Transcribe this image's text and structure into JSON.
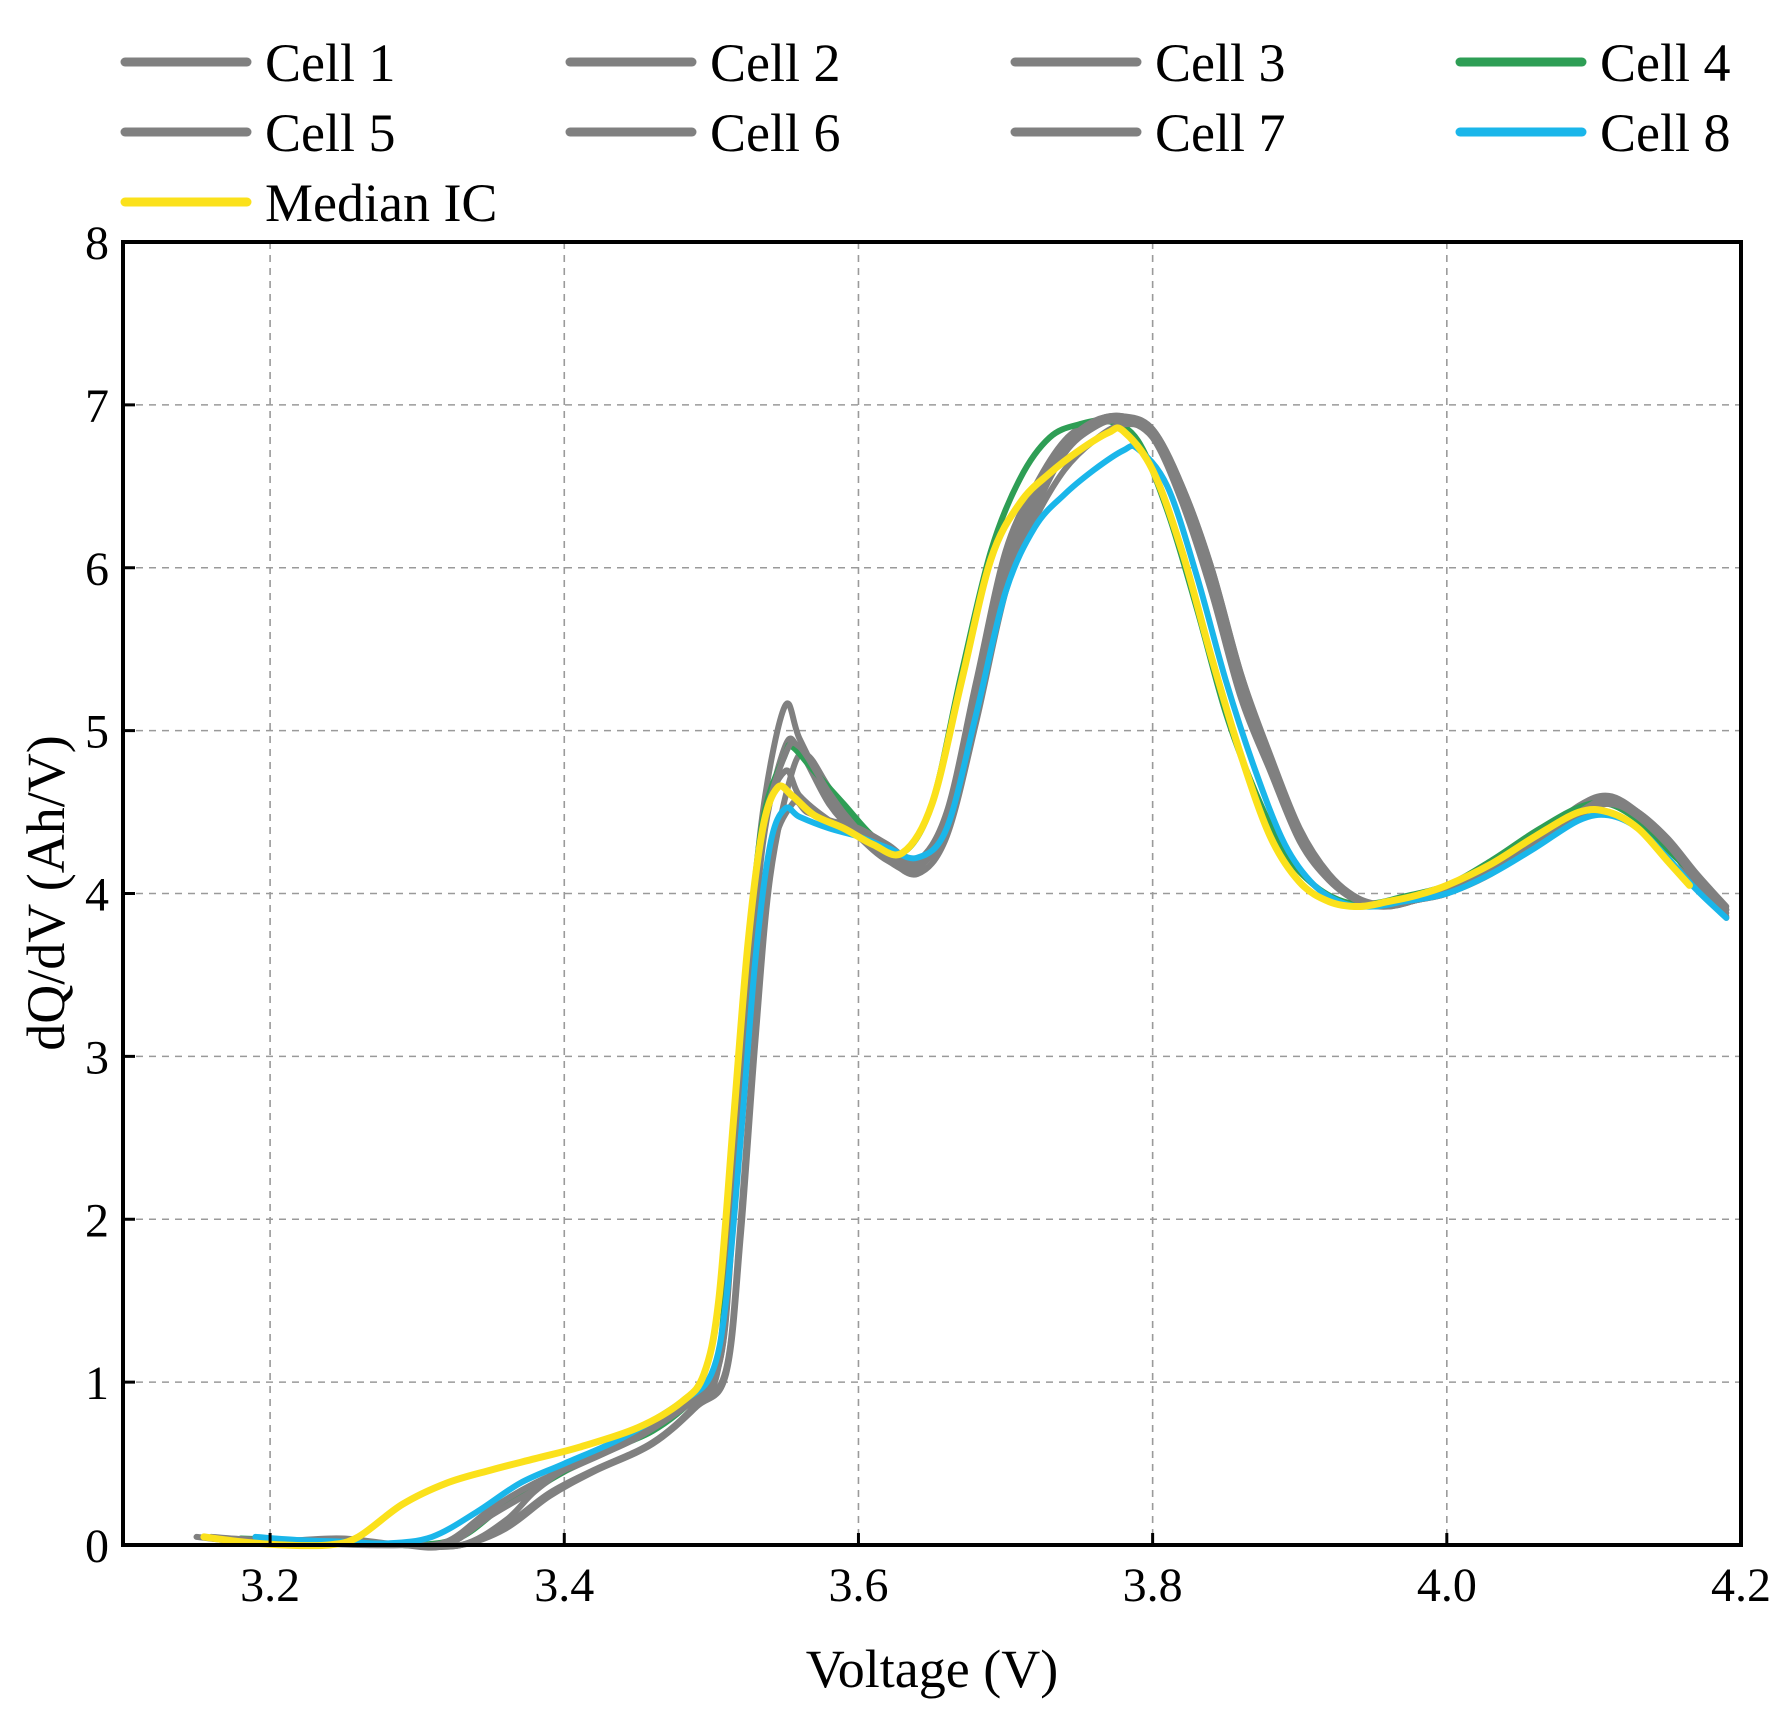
{
  "chart_data": {
    "type": "line",
    "title": "",
    "xlabel": "Voltage (V)",
    "ylabel": "dQ/dV (Ah/V)",
    "xlim": [
      3.1,
      4.2
    ],
    "ylim": [
      0,
      8
    ],
    "xticks": [
      3.2,
      3.4,
      3.6,
      3.8,
      4.0,
      4.2
    ],
    "xtick_labels": [
      "3.2",
      "3.4",
      "3.6",
      "3.8",
      "4.0",
      "4.2"
    ],
    "yticks": [
      0,
      1,
      2,
      3,
      4,
      5,
      6,
      7,
      8
    ],
    "ytick_labels": [
      "0",
      "1",
      "2",
      "3",
      "4",
      "5",
      "6",
      "7",
      "8"
    ],
    "grid": true,
    "legend_position": "top",
    "series": [
      {
        "name": "Cell 1",
        "color": "#808080",
        "x": [
          3.15,
          3.18,
          3.21,
          3.25,
          3.29,
          3.33,
          3.36,
          3.38,
          3.4,
          3.44,
          3.48,
          3.505,
          3.515,
          3.525,
          3.535,
          3.55,
          3.56,
          3.58,
          3.6,
          3.62,
          3.64,
          3.66,
          3.68,
          3.7,
          3.72,
          3.74,
          3.76,
          3.78,
          3.8,
          3.82,
          3.84,
          3.86,
          3.88,
          3.9,
          3.92,
          3.94,
          3.96,
          3.98,
          4.0,
          4.03,
          4.06,
          4.09,
          4.11,
          4.13,
          4.15,
          4.17,
          4.19
        ],
        "y": [
          0.05,
          0.02,
          0.01,
          0.02,
          0.0,
          0.0,
          0.15,
          0.33,
          0.45,
          0.62,
          0.85,
          1.1,
          2.0,
          3.2,
          4.3,
          4.9,
          4.88,
          4.55,
          4.35,
          4.2,
          4.15,
          4.45,
          5.2,
          6.0,
          6.45,
          6.75,
          6.88,
          6.92,
          6.8,
          6.4,
          5.85,
          5.2,
          4.75,
          4.32,
          4.08,
          3.95,
          3.93,
          3.97,
          4.02,
          4.15,
          4.32,
          4.52,
          4.57,
          4.48,
          4.3,
          4.05,
          3.88
        ]
      },
      {
        "name": "Cell 2",
        "color": "#808080",
        "x": [
          3.16,
          3.19,
          3.22,
          3.25,
          3.29,
          3.32,
          3.35,
          3.38,
          3.4,
          3.44,
          3.48,
          3.505,
          3.515,
          3.525,
          3.535,
          3.55,
          3.56,
          3.58,
          3.6,
          3.62,
          3.64,
          3.66,
          3.68,
          3.7,
          3.72,
          3.74,
          3.76,
          3.78,
          3.8,
          3.82,
          3.84,
          3.86,
          3.88,
          3.9,
          3.92,
          3.94,
          3.96,
          3.98,
          4.0,
          4.03,
          4.06,
          4.09,
          4.11,
          4.13,
          4.15,
          4.17,
          4.19
        ],
        "y": [
          0.04,
          0.02,
          0.03,
          0.04,
          0.0,
          0.0,
          0.2,
          0.36,
          0.48,
          0.65,
          0.88,
          1.15,
          2.2,
          3.5,
          4.5,
          5.15,
          4.95,
          4.6,
          4.38,
          4.25,
          4.2,
          4.5,
          5.3,
          6.1,
          6.5,
          6.78,
          6.9,
          6.93,
          6.82,
          6.45,
          5.9,
          5.25,
          4.78,
          4.35,
          4.1,
          3.96,
          3.93,
          3.97,
          4.02,
          4.15,
          4.33,
          4.54,
          4.6,
          4.5,
          4.32,
          4.1,
          3.9
        ]
      },
      {
        "name": "Cell 3",
        "color": "#808080",
        "x": [
          3.17,
          3.2,
          3.23,
          3.27,
          3.3,
          3.33,
          3.36,
          3.39,
          3.42,
          3.46,
          3.49,
          3.51,
          3.52,
          3.53,
          3.54,
          3.555,
          3.565,
          3.58,
          3.6,
          3.62,
          3.64,
          3.66,
          3.68,
          3.7,
          3.72,
          3.74,
          3.76,
          3.78,
          3.8,
          3.82,
          3.84,
          3.86,
          3.88,
          3.9,
          3.92,
          3.94,
          3.96,
          3.98,
          4.0,
          4.03,
          4.06,
          4.09,
          4.11,
          4.13,
          4.15,
          4.17,
          4.19
        ],
        "y": [
          0.03,
          0.01,
          0.02,
          0.0,
          0.0,
          0.0,
          0.1,
          0.3,
          0.45,
          0.62,
          0.85,
          1.05,
          1.9,
          3.1,
          4.1,
          4.75,
          4.85,
          4.65,
          4.4,
          4.22,
          4.12,
          4.35,
          5.05,
          5.85,
          6.35,
          6.7,
          6.86,
          6.92,
          6.85,
          6.5,
          6.0,
          5.35,
          4.82,
          4.38,
          4.1,
          3.95,
          3.92,
          3.96,
          4.0,
          4.12,
          4.3,
          4.5,
          4.58,
          4.5,
          4.34,
          4.12,
          3.92
        ]
      },
      {
        "name": "Cell 4",
        "color": "#2e9e55",
        "x": [
          3.18,
          3.21,
          3.24,
          3.27,
          3.3,
          3.33,
          3.36,
          3.39,
          3.42,
          3.46,
          3.49,
          3.505,
          3.515,
          3.525,
          3.535,
          3.55,
          3.555,
          3.57,
          3.59,
          3.61,
          3.63,
          3.65,
          3.67,
          3.69,
          3.71,
          3.73,
          3.75,
          3.77,
          3.79,
          3.81,
          3.83,
          3.85,
          3.87,
          3.89,
          3.91,
          3.93,
          3.95,
          3.97,
          4.0,
          4.03,
          4.06,
          4.09,
          4.11,
          4.13,
          4.15,
          4.17
        ],
        "y": [
          0.04,
          0.03,
          0.02,
          0.01,
          0.0,
          0.05,
          0.25,
          0.4,
          0.55,
          0.7,
          0.92,
          1.15,
          2.3,
          3.6,
          4.45,
          4.85,
          4.9,
          4.75,
          4.55,
          4.35,
          4.25,
          4.55,
          5.35,
          6.1,
          6.55,
          6.8,
          6.88,
          6.9,
          6.78,
          6.35,
          5.75,
          5.1,
          4.62,
          4.25,
          4.05,
          3.95,
          3.94,
          3.98,
          4.05,
          4.2,
          4.38,
          4.53,
          4.55,
          4.45,
          4.27,
          4.1
        ]
      },
      {
        "name": "Cell 5",
        "color": "#808080",
        "x": [
          3.16,
          3.19,
          3.22,
          3.25,
          3.29,
          3.32,
          3.35,
          3.38,
          3.4,
          3.44,
          3.48,
          3.505,
          3.515,
          3.525,
          3.535,
          3.55,
          3.56,
          3.58,
          3.6,
          3.62,
          3.64,
          3.66,
          3.68,
          3.7,
          3.72,
          3.74,
          3.76,
          3.78,
          3.8,
          3.82,
          3.84,
          3.86,
          3.88,
          3.9,
          3.92,
          3.94,
          3.96,
          3.98,
          4.0,
          4.03,
          4.06,
          4.09,
          4.11,
          4.13,
          4.15,
          4.17,
          4.19
        ],
        "y": [
          0.05,
          0.03,
          0.02,
          0.01,
          0.0,
          0.0,
          0.18,
          0.34,
          0.46,
          0.63,
          0.86,
          1.1,
          2.05,
          3.3,
          4.35,
          4.85,
          4.9,
          4.62,
          4.38,
          4.22,
          4.16,
          4.42,
          5.15,
          5.95,
          6.42,
          6.73,
          6.87,
          6.9,
          6.8,
          6.45,
          5.92,
          5.28,
          4.8,
          4.36,
          4.1,
          3.96,
          3.93,
          3.96,
          4.01,
          4.13,
          4.3,
          4.5,
          4.56,
          4.47,
          4.3,
          4.08,
          3.86
        ]
      },
      {
        "name": "Cell 6",
        "color": "#808080",
        "x": [
          3.17,
          3.2,
          3.23,
          3.26,
          3.29,
          3.32,
          3.35,
          3.38,
          3.41,
          3.45,
          3.49,
          3.51,
          3.52,
          3.53,
          3.54,
          3.555,
          3.565,
          3.58,
          3.6,
          3.62,
          3.64,
          3.66,
          3.68,
          3.7,
          3.72,
          3.74,
          3.76,
          3.78,
          3.8,
          3.82,
          3.84,
          3.86,
          3.88,
          3.9,
          3.92,
          3.94,
          3.96,
          3.98,
          4.0,
          4.03,
          4.06,
          4.09,
          4.11,
          4.13,
          4.15,
          4.17,
          4.19
        ],
        "y": [
          0.04,
          0.02,
          0.01,
          0.0,
          0.0,
          0.02,
          0.22,
          0.38,
          0.5,
          0.66,
          0.9,
          1.08,
          2.0,
          3.2,
          4.2,
          4.55,
          4.5,
          4.45,
          4.4,
          4.3,
          4.2,
          4.45,
          5.1,
          5.9,
          6.3,
          6.6,
          6.78,
          6.88,
          6.82,
          6.5,
          6.0,
          5.35,
          4.85,
          4.4,
          4.12,
          3.97,
          3.93,
          3.96,
          4.01,
          4.13,
          4.3,
          4.48,
          4.55,
          4.48,
          4.32,
          4.1,
          3.9
        ]
      },
      {
        "name": "Cell 7",
        "color": "#808080",
        "x": [
          3.17,
          3.2,
          3.23,
          3.26,
          3.3,
          3.33,
          3.36,
          3.39,
          3.42,
          3.46,
          3.49,
          3.505,
          3.515,
          3.525,
          3.535,
          3.55,
          3.56,
          3.58,
          3.6,
          3.62,
          3.64,
          3.66,
          3.68,
          3.7,
          3.72,
          3.74,
          3.76,
          3.78,
          3.8,
          3.82,
          3.84,
          3.86,
          3.88,
          3.9,
          3.92,
          3.94,
          3.96,
          3.98,
          4.0,
          4.03,
          4.06,
          4.09,
          4.11,
          4.13,
          4.15,
          4.17,
          4.19
        ],
        "y": [
          0.04,
          0.03,
          0.02,
          0.01,
          0.0,
          0.0,
          0.12,
          0.32,
          0.46,
          0.63,
          0.87,
          1.1,
          2.1,
          3.4,
          4.4,
          4.75,
          4.6,
          4.45,
          4.35,
          4.25,
          4.18,
          4.45,
          5.2,
          6.0,
          6.45,
          6.75,
          6.9,
          6.93,
          6.85,
          6.5,
          5.95,
          5.3,
          4.8,
          4.37,
          4.1,
          3.95,
          3.92,
          3.96,
          4.0,
          4.12,
          4.3,
          4.5,
          4.58,
          4.5,
          4.33,
          4.1,
          3.85
        ]
      },
      {
        "name": "Cell 8",
        "color": "#1ab6ea",
        "x": [
          3.19,
          3.22,
          3.25,
          3.28,
          3.31,
          3.34,
          3.37,
          3.4,
          3.44,
          3.48,
          3.5,
          3.51,
          3.52,
          3.53,
          3.54,
          3.55,
          3.56,
          3.58,
          3.6,
          3.62,
          3.64,
          3.66,
          3.68,
          3.7,
          3.72,
          3.74,
          3.76,
          3.78,
          3.79,
          3.81,
          3.83,
          3.85,
          3.87,
          3.89,
          3.91,
          3.93,
          3.95,
          3.97,
          4.0,
          4.03,
          4.06,
          4.09,
          4.11,
          4.13,
          4.15,
          4.17,
          4.19
        ],
        "y": [
          0.05,
          0.03,
          0.02,
          0.01,
          0.05,
          0.2,
          0.38,
          0.5,
          0.66,
          0.88,
          1.05,
          1.5,
          2.5,
          3.6,
          4.3,
          4.52,
          4.47,
          4.4,
          4.35,
          4.28,
          4.22,
          4.4,
          5.1,
          5.85,
          6.25,
          6.45,
          6.6,
          6.72,
          6.73,
          6.5,
          5.95,
          5.3,
          4.75,
          4.3,
          4.05,
          3.94,
          3.92,
          3.95,
          4.0,
          4.12,
          4.28,
          4.45,
          4.48,
          4.4,
          4.22,
          4.02,
          3.85
        ]
      },
      {
        "name": "Median IC",
        "color": "#fbe11b",
        "x": [
          3.155,
          3.18,
          3.21,
          3.24,
          3.26,
          3.29,
          3.32,
          3.35,
          3.38,
          3.41,
          3.45,
          3.48,
          3.495,
          3.505,
          3.515,
          3.525,
          3.535,
          3.545,
          3.555,
          3.57,
          3.59,
          3.61,
          3.63,
          3.65,
          3.67,
          3.69,
          3.71,
          3.73,
          3.75,
          3.77,
          3.78,
          3.8,
          3.82,
          3.84,
          3.86,
          3.88,
          3.9,
          3.92,
          3.94,
          3.96,
          3.98,
          4.0,
          4.03,
          4.06,
          4.09,
          4.11,
          4.13,
          4.15,
          4.165
        ],
        "y": [
          0.05,
          0.02,
          0.0,
          0.0,
          0.05,
          0.25,
          0.38,
          0.46,
          0.53,
          0.6,
          0.72,
          0.88,
          1.05,
          1.5,
          2.6,
          3.7,
          4.4,
          4.65,
          4.6,
          4.48,
          4.4,
          4.3,
          4.25,
          4.55,
          5.3,
          6.05,
          6.4,
          6.58,
          6.72,
          6.83,
          6.84,
          6.6,
          6.1,
          5.45,
          4.85,
          4.35,
          4.07,
          3.95,
          3.92,
          3.95,
          3.99,
          4.05,
          4.18,
          4.35,
          4.5,
          4.5,
          4.4,
          4.2,
          4.05
        ]
      }
    ]
  }
}
